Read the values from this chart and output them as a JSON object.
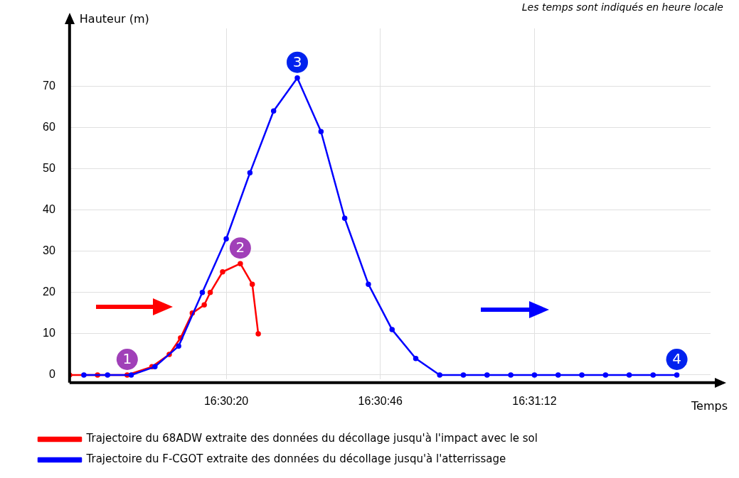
{
  "chart_data": {
    "type": "line",
    "xlabel": "Temps",
    "ylabel": "Hauteur (m)",
    "series": [
      {
        "name": "Trajectoire du 68ADW extraite des données du décollage jusqu'à l'impact avec le sol",
        "color": "#ff0000",
        "x": [
          16.49822,
          16.49953,
          16.50092,
          16.50208,
          16.50289,
          16.50342,
          16.50397,
          16.50453,
          16.50481,
          16.50539,
          16.50622,
          16.50678,
          16.50706
        ],
        "values": [
          0,
          0,
          0,
          2,
          5,
          9,
          15,
          17,
          20,
          25,
          27,
          22,
          10
        ]
      },
      {
        "name": "Trajectoire du F-CGOT extraite des données du décollage jusqu'à l'atterrissage",
        "color": "#0000ff",
        "x": [
          16.49889,
          16.5,
          16.50111,
          16.50222,
          16.50333,
          16.50444,
          16.50556,
          16.50667,
          16.50778,
          16.50889,
          16.51,
          16.51111,
          16.51222,
          16.51333,
          16.51444,
          16.51556,
          16.51667,
          16.51778,
          16.51889,
          16.52,
          16.52111,
          16.52222,
          16.52333,
          16.52444,
          16.52556,
          16.52667
        ],
        "values": [
          0,
          0,
          0,
          2,
          7,
          20,
          33,
          49,
          64,
          72,
          59,
          38,
          22,
          11,
          4,
          0,
          0,
          0,
          0,
          0,
          0,
          0,
          0,
          0,
          0,
          0
        ]
      }
    ],
    "xlim": [
      16.49822,
      16.52825
    ],
    "xticks": [
      {
        "value": 16.50556,
        "label": "16:30:20"
      },
      {
        "value": 16.51278,
        "label": "16:30:46"
      },
      {
        "value": 16.52,
        "label": "16:31:12"
      }
    ],
    "ylim": [
      -1,
      84
    ],
    "yticks": [
      0,
      10,
      20,
      30,
      40,
      50,
      60,
      70
    ],
    "grid": true,
    "legend": "bottom",
    "marker": "circle",
    "line_style": "solid",
    "annotations": [
      "Les temps sont indiqués en heure locale",
      {
        "text": "1",
        "x": 16.50092,
        "y": 0
      },
      {
        "text": "2",
        "x": 16.50622,
        "y": 27
      },
      {
        "text": "3",
        "x": 16.50889,
        "y": 72
      },
      {
        "text": "4",
        "x": 16.52667,
        "y": 0
      }
    ]
  }
}
